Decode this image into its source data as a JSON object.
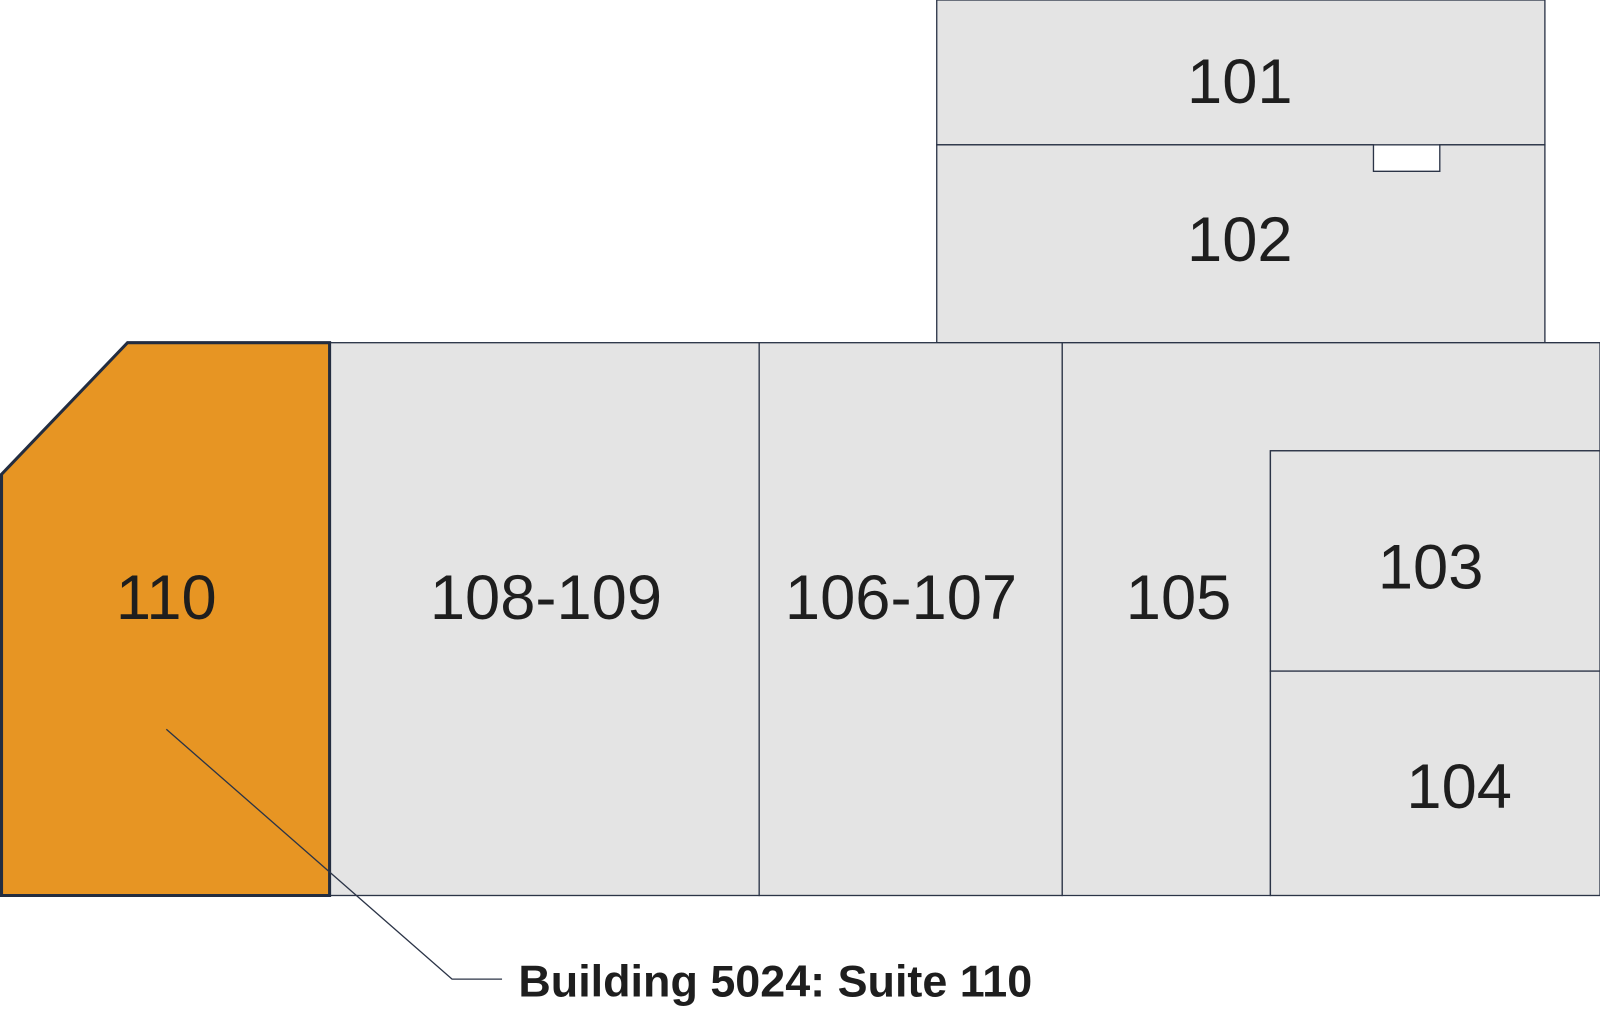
{
  "colors": {
    "selected_suite": "#e79523",
    "suite": "#e4e4e4",
    "outline": "#2b3447"
  },
  "selected_suite": "110",
  "suites": {
    "s101": "101",
    "s102": "102",
    "s103": "103",
    "s104": "104",
    "s105": "105",
    "s106_107": "106-107",
    "s108_109": "108-109",
    "s110": "110"
  },
  "callout": "Building 5024: Suite 110"
}
